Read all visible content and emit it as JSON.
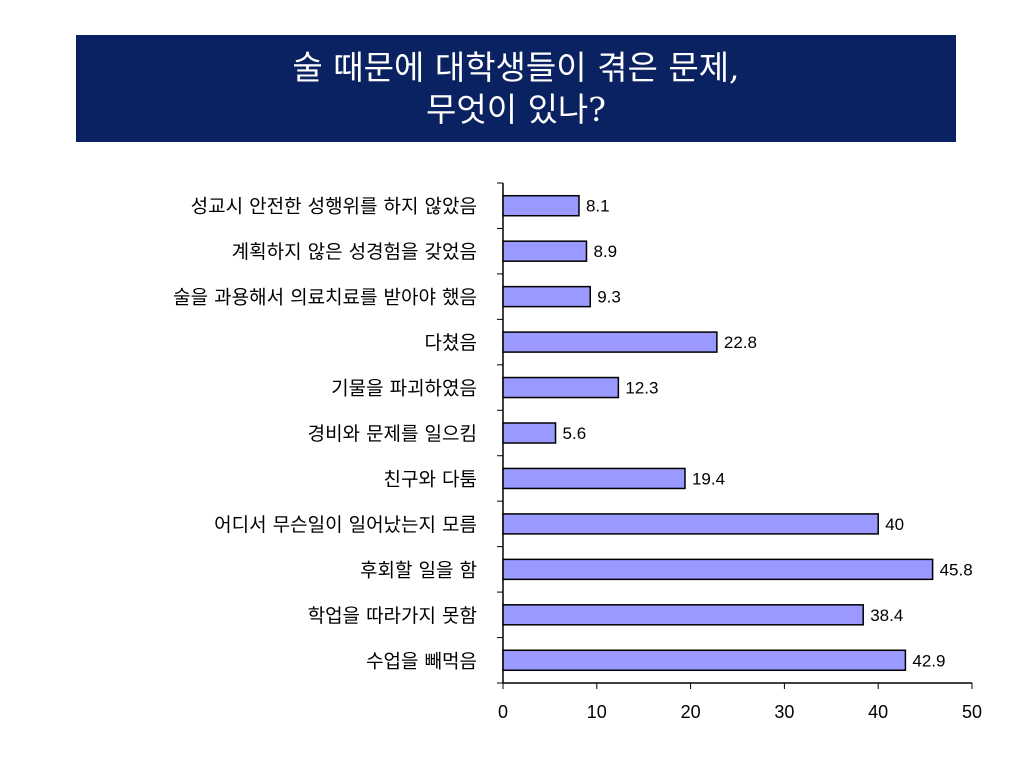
{
  "title": {
    "line1": "술 때문에 대학생들이 겪은 문제,",
    "line2": "무엇이 있나?"
  },
  "colors": {
    "title_bg": "#0b2262",
    "bar_fill": "#9999ff",
    "bar_stroke": "#000000"
  },
  "chart_data": {
    "type": "bar",
    "orientation": "horizontal",
    "categories": [
      "성교시 안전한 성행위를 하지 않았음",
      "계획하지 않은 성경험을 갖었음",
      "술을 과용해서 의료치료를 받아야 했음",
      "다쳤음",
      "기물을 파괴하였음",
      "경비와 문제를 일으킴",
      "친구와 다툼",
      "어디서 무슨일이 일어났는지 모름",
      "후회할 일을 함",
      "학업을 따라가지 못함",
      "수업을 빼먹음"
    ],
    "values": [
      8.1,
      8.9,
      9.3,
      22.8,
      12.3,
      5.6,
      19.4,
      40,
      45.8,
      38.4,
      42.9
    ],
    "value_labels": [
      "8.1",
      "8.9",
      "9.3",
      "22.8",
      "12.3",
      "5.6",
      "19.4",
      "40",
      "45.8",
      "38.4",
      "42.9"
    ],
    "xlim": [
      0,
      50
    ],
    "xticks": [
      0,
      10,
      20,
      30,
      40,
      50
    ],
    "grid": false,
    "legend": "none"
  }
}
